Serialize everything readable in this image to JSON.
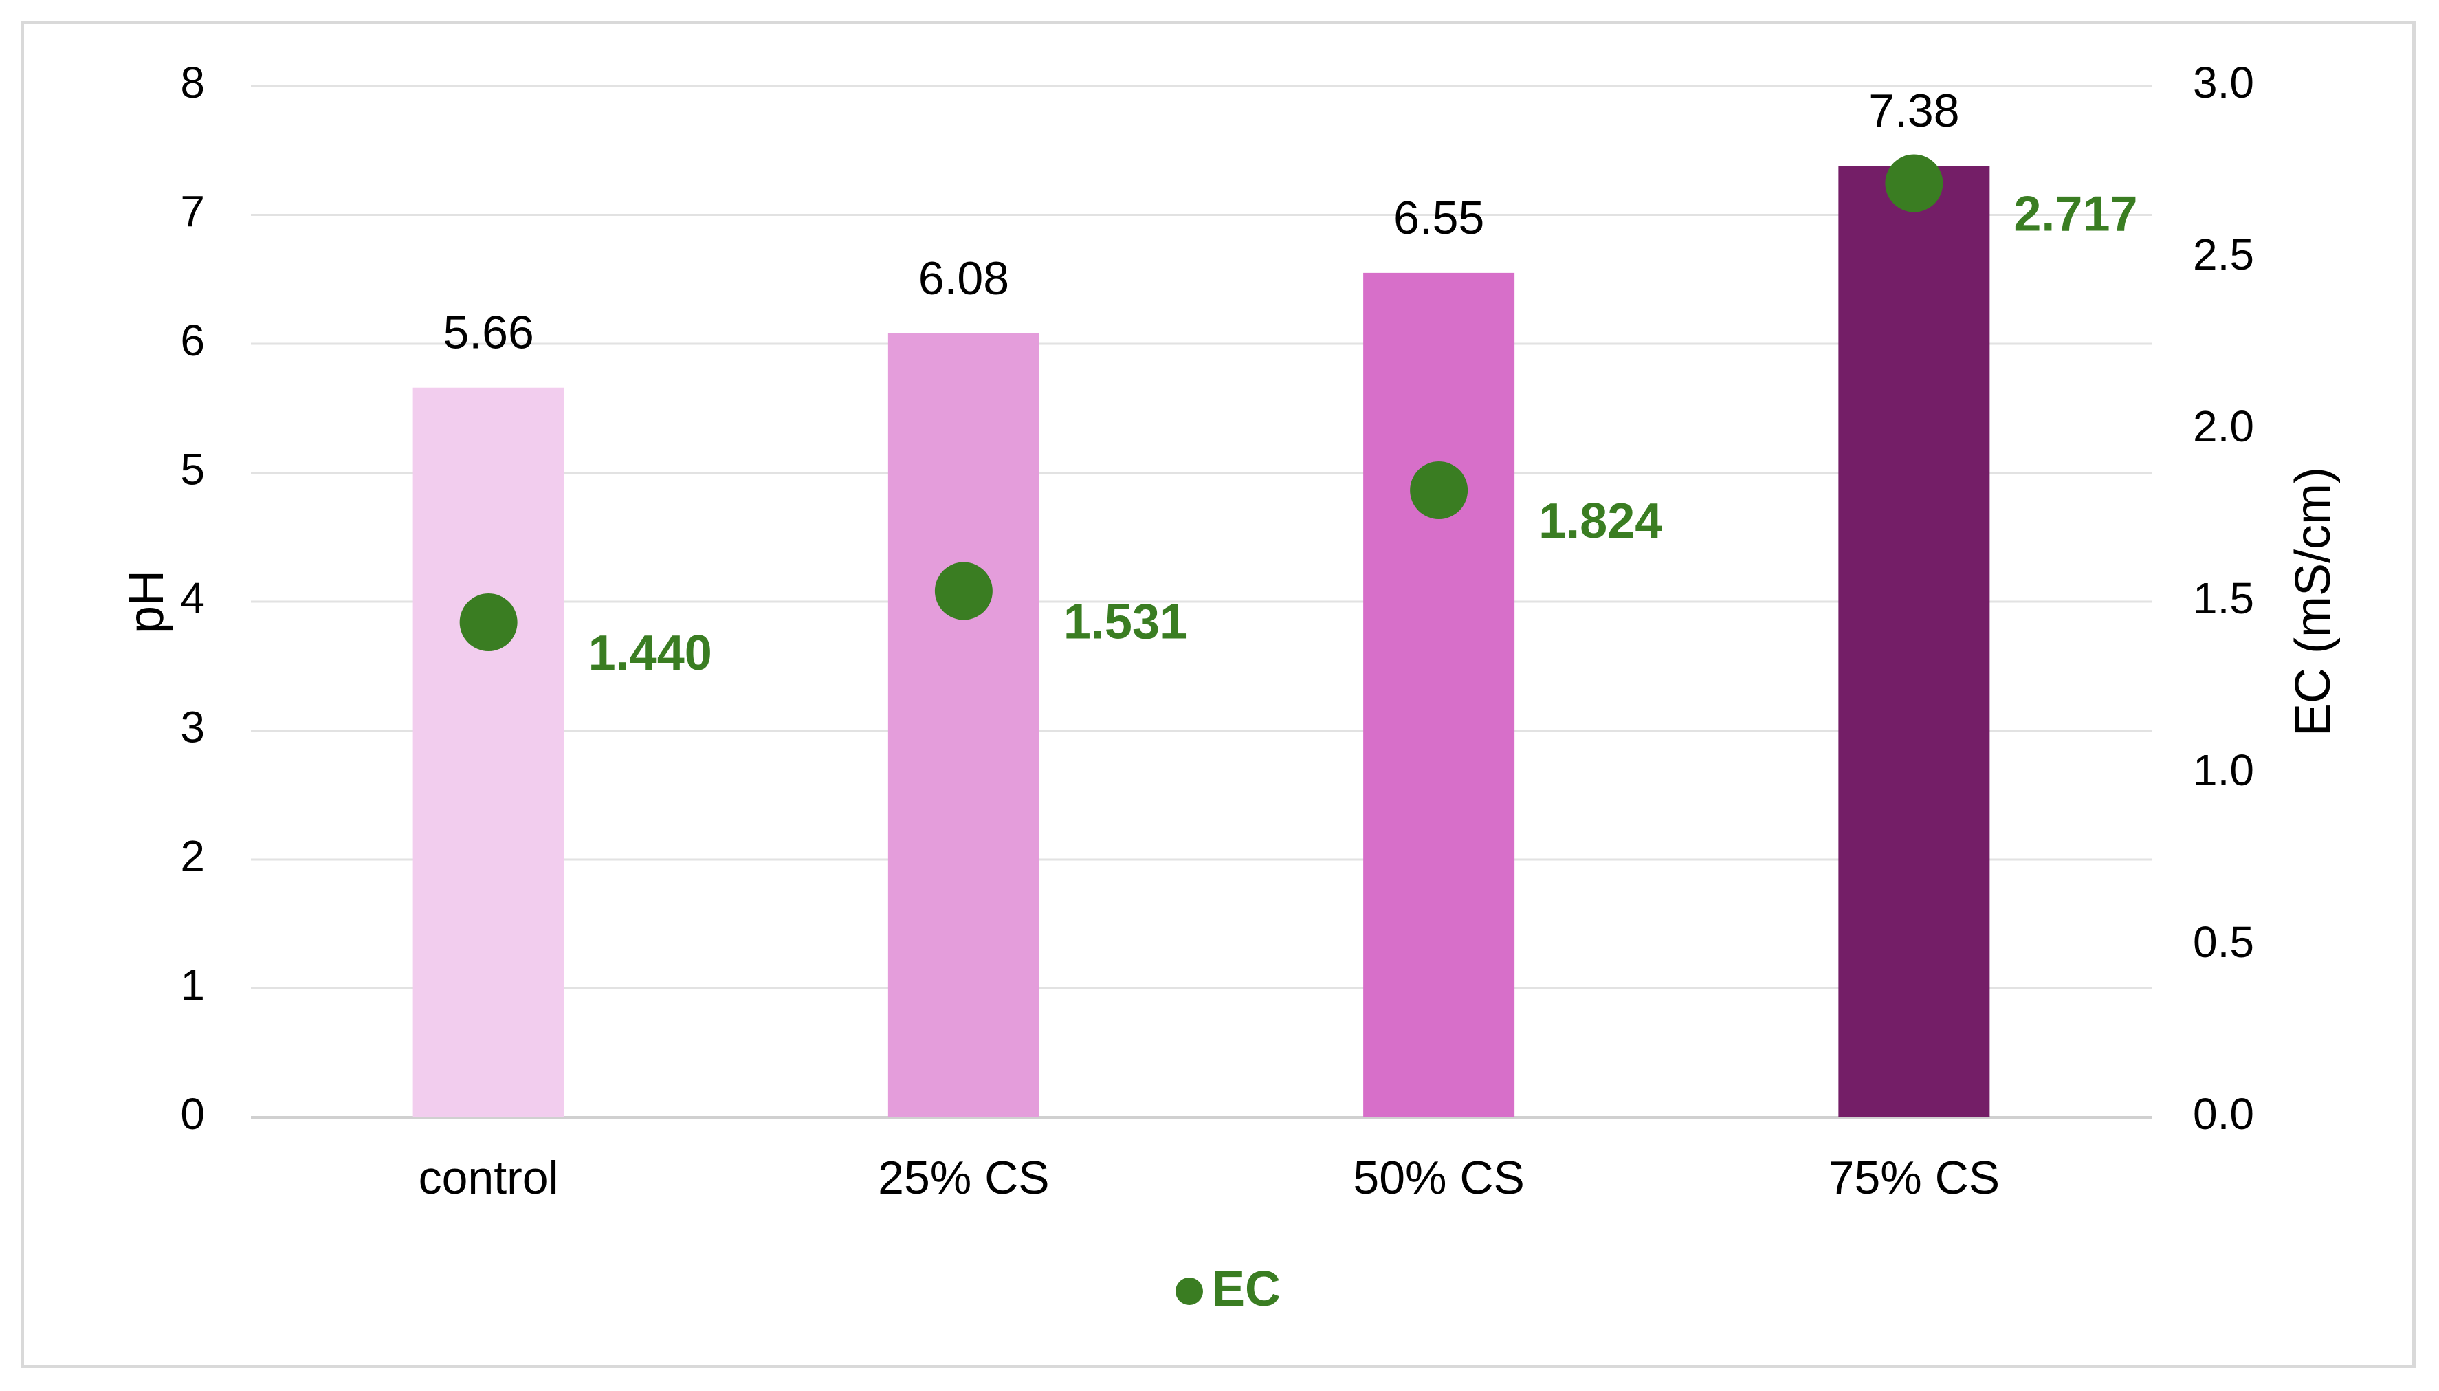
{
  "chart_data": {
    "type": "bar",
    "categories": [
      "control",
      "25% CS",
      "50% CS",
      "75% CS"
    ],
    "series": [
      {
        "values": [
          5.66,
          6.08,
          6.55,
          7.38
        ],
        "value_labels": [
          "5.66",
          "6.08",
          "6.55",
          "7.38"
        ],
        "colors": [
          "#f2cdee",
          "#e49ddb",
          "#d76fc9",
          "#741e67"
        ],
        "axis": "left"
      },
      {
        "name": "EC",
        "type": "scatter",
        "values": [
          1.44,
          1.531,
          1.824,
          2.717
        ],
        "value_labels": [
          "1.440",
          "1.531",
          "1.824",
          "2.717"
        ],
        "color": "#3a7d22",
        "axis": "right"
      }
    ],
    "ylabel": "pH",
    "ylim": [
      0,
      8
    ],
    "y_ticks": [
      "0",
      "1",
      "2",
      "3",
      "4",
      "5",
      "6",
      "7",
      "8"
    ],
    "y2label": "EC (mS/cm)",
    "y2lim": [
      0,
      3
    ],
    "y2_ticks": [
      "0.0",
      "0.5",
      "1.0",
      "1.5",
      "2.0",
      "2.5",
      "3.0"
    ],
    "grid": true,
    "legend": {
      "position": "bottom",
      "entries": [
        "EC"
      ]
    }
  }
}
